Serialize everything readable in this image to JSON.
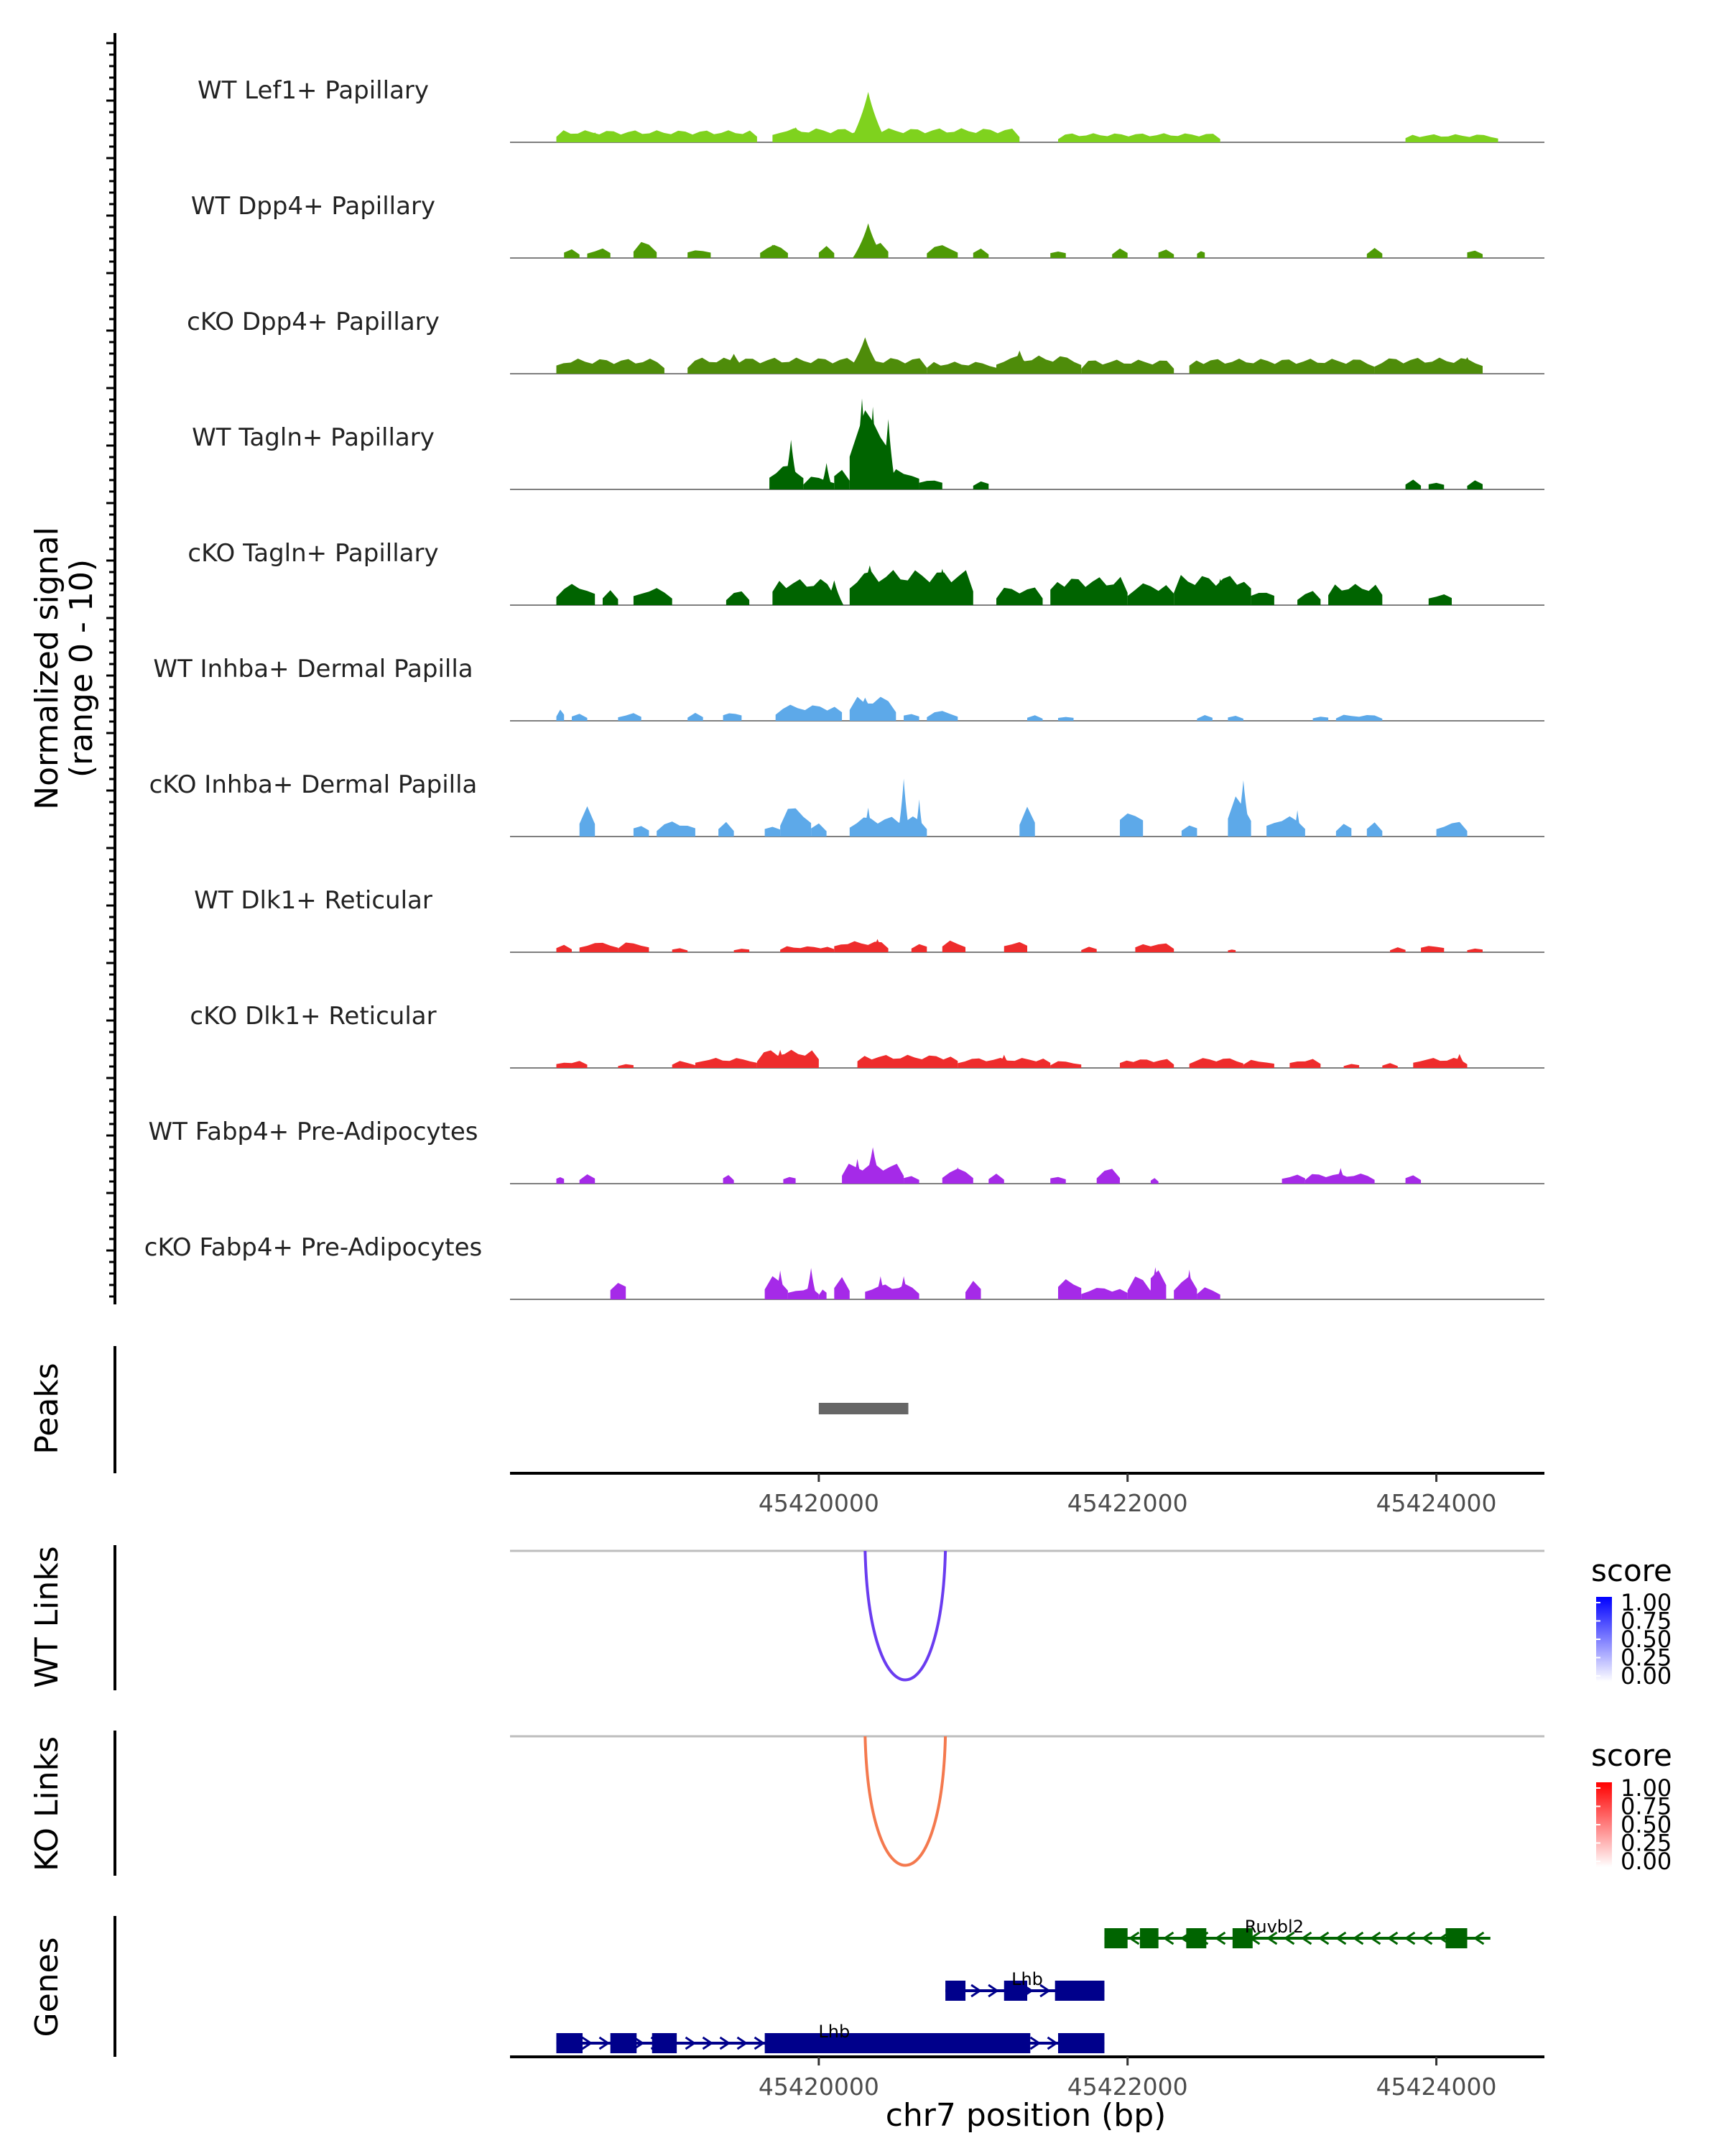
{
  "chart_data": {
    "type": "genome-browser",
    "chromosome": "chr7",
    "xlabel": "chr7 position (bp)",
    "xlim": [
      45418000,
      45424700
    ],
    "x_ticks": [
      45420000,
      45422000,
      45424000
    ],
    "x_tick_labels": [
      "45420000",
      "45422000",
      "45424000"
    ],
    "coverage_ylabel": [
      "Normalized signal",
      "(range 0 - 10)"
    ],
    "coverage_ylim": [
      0,
      10
    ],
    "coverage_tracks": [
      {
        "name": "WT Lef1+ Papillary",
        "color": "#7FD21E",
        "segments": [
          [
            45418300,
            45419600,
            1.2
          ],
          [
            45419700,
            45421300,
            1.4
          ],
          [
            45421550,
            45422600,
            0.9
          ],
          [
            45423800,
            45424400,
            0.8
          ]
        ],
        "peaks": [
          [
            45419850,
            0.1,
            1.8
          ],
          [
            45420320,
            0.12,
            6.1
          ],
          [
            45418550,
            0.08,
            1.2
          ]
        ]
      },
      {
        "name": "WT Dpp4+ Papillary",
        "color": "#4E9A06",
        "segments": [
          [
            45418350,
            45418450,
            1.0
          ],
          [
            45418500,
            45418650,
            1.0
          ],
          [
            45418800,
            45418950,
            1.6
          ],
          [
            45419150,
            45419300,
            1.0
          ],
          [
            45419620,
            45419800,
            1.3
          ],
          [
            45420000,
            45420100,
            1.2
          ],
          [
            45420250,
            45420450,
            1.5
          ],
          [
            45420700,
            45420900,
            1.3
          ],
          [
            45421000,
            45421100,
            1.0
          ],
          [
            45421500,
            45421600,
            1.0
          ],
          [
            45421900,
            45422000,
            1.0
          ],
          [
            45422200,
            45422300,
            1.0
          ],
          [
            45422450,
            45422500,
            1.0
          ],
          [
            45423550,
            45423650,
            1.0
          ],
          [
            45424200,
            45424300,
            1.0
          ]
        ],
        "peaks": [
          [
            45420320,
            0.1,
            4.2
          ],
          [
            45419700,
            0.08,
            1.6
          ],
          [
            45420800,
            0.08,
            1.5
          ]
        ]
      },
      {
        "name": "cKO Dpp4+ Papillary",
        "color": "#4E8C0A",
        "segments": [
          [
            45418300,
            45419000,
            1.5
          ],
          [
            45419150,
            45420700,
            1.6
          ],
          [
            45420700,
            45421150,
            1.2
          ],
          [
            45421150,
            45421700,
            1.8
          ],
          [
            45421700,
            45422300,
            1.4
          ],
          [
            45422400,
            45423600,
            1.5
          ],
          [
            45423600,
            45424300,
            1.6
          ]
        ],
        "peaks": [
          [
            45420300,
            0.12,
            4.4
          ],
          [
            45419450,
            0.1,
            2.4
          ],
          [
            45421300,
            0.08,
            2.8
          ],
          [
            45424200,
            0.08,
            2.0
          ]
        ]
      },
      {
        "name": "WT Tagln+ Papillary",
        "color": "#006400",
        "segments": [
          [
            45419680,
            45419900,
            2.5
          ],
          [
            45419900,
            45420100,
            1.3
          ],
          [
            45420100,
            45420200,
            2.4
          ],
          [
            45420200,
            45420450,
            8.0
          ],
          [
            45420450,
            45420650,
            2.0
          ],
          [
            45420650,
            45420800,
            1.2
          ],
          [
            45421000,
            45421100,
            1.0
          ],
          [
            45423800,
            45423900,
            1.0
          ],
          [
            45423950,
            45424050,
            1.0
          ],
          [
            45424200,
            45424300,
            1.0
          ]
        ],
        "peaks": [
          [
            45419820,
            0.05,
            6.0
          ],
          [
            45420280,
            0.06,
            11.0
          ],
          [
            45420350,
            0.05,
            10.0
          ],
          [
            45420450,
            0.05,
            8.5
          ],
          [
            45420050,
            0.04,
            3.2
          ]
        ]
      },
      {
        "name": "cKO Tagln+ Papillary",
        "color": "#006400",
        "segments": [
          [
            45418300,
            45418550,
            2.1
          ],
          [
            45418600,
            45418700,
            1.5
          ],
          [
            45418800,
            45419050,
            1.7
          ],
          [
            45419400,
            45419550,
            1.4
          ],
          [
            45419700,
            45420100,
            2.6
          ],
          [
            45420200,
            45421000,
            3.5
          ],
          [
            45421150,
            45421450,
            1.8
          ],
          [
            45421500,
            45422000,
            2.8
          ],
          [
            45422000,
            45422300,
            2.2
          ],
          [
            45422300,
            45422800,
            3.0
          ],
          [
            45422800,
            45422950,
            1.7
          ],
          [
            45423100,
            45423250,
            1.4
          ],
          [
            45423300,
            45423650,
            2.1
          ],
          [
            45423950,
            45424100,
            1.3
          ]
        ],
        "peaks": [
          [
            45420330,
            0.1,
            4.8
          ],
          [
            45420800,
            0.08,
            4.4
          ],
          [
            45420100,
            0.06,
            3.0
          ],
          [
            45422600,
            0.06,
            3.2
          ]
        ]
      },
      {
        "name": "WT Inhba+ Dermal Papilla",
        "color": "#5DA9E9",
        "segments": [
          [
            45418300,
            45418350,
            1.2
          ],
          [
            45418400,
            45418500,
            0.8
          ],
          [
            45418700,
            45418850,
            0.8
          ],
          [
            45419150,
            45419250,
            0.8
          ],
          [
            45419380,
            45419500,
            1.0
          ],
          [
            45419720,
            45420150,
            1.6
          ],
          [
            45420200,
            45420500,
            2.4
          ],
          [
            45420550,
            45420650,
            1.0
          ],
          [
            45420700,
            45420900,
            1.0
          ],
          [
            45421350,
            45421450,
            0.6
          ],
          [
            45421550,
            45421650,
            0.6
          ],
          [
            45422450,
            45422550,
            0.6
          ],
          [
            45422650,
            45422750,
            0.6
          ],
          [
            45423200,
            45423300,
            0.6
          ],
          [
            45423350,
            45423650,
            0.6
          ]
        ],
        "peaks": [
          [
            45420300,
            0.1,
            2.8
          ]
        ]
      },
      {
        "name": "cKO Inhba+ Dermal Papilla",
        "color": "#5DA9E9",
        "segments": [
          [
            45418450,
            45418550,
            3.0
          ],
          [
            45418800,
            45418900,
            1.5
          ],
          [
            45418950,
            45419200,
            1.5
          ],
          [
            45419350,
            45419450,
            1.5
          ],
          [
            45419650,
            45419750,
            1.5
          ],
          [
            45419750,
            45419950,
            3.0
          ],
          [
            45419950,
            45420050,
            1.5
          ],
          [
            45420200,
            45420700,
            2.0
          ],
          [
            45421300,
            45421400,
            3.0
          ],
          [
            45421950,
            45422100,
            3.0
          ],
          [
            45422350,
            45422450,
            1.5
          ],
          [
            45422650,
            45422800,
            4.0
          ],
          [
            45422900,
            45423150,
            2.0
          ],
          [
            45423350,
            45423450,
            1.5
          ],
          [
            45423550,
            45423650,
            1.5
          ],
          [
            45424000,
            45424200,
            1.5
          ]
        ],
        "peaks": [
          [
            45420550,
            0.04,
            7.0
          ],
          [
            45420650,
            0.03,
            4.5
          ],
          [
            45420320,
            0.04,
            3.5
          ],
          [
            45422750,
            0.05,
            6.8
          ],
          [
            45423100,
            0.03,
            3.2
          ]
        ]
      },
      {
        "name": "WT Dlk1+ Reticular",
        "color": "#EE2C2C",
        "segments": [
          [
            45418300,
            45418400,
            0.8
          ],
          [
            45418450,
            45418700,
            1.0
          ],
          [
            45418700,
            45418900,
            1.0
          ],
          [
            45419050,
            45419150,
            0.5
          ],
          [
            45419450,
            45419550,
            0.5
          ],
          [
            45419750,
            45420100,
            0.6
          ],
          [
            45420100,
            45420450,
            1.1
          ],
          [
            45420600,
            45420700,
            1.0
          ],
          [
            45420800,
            45420950,
            1.2
          ],
          [
            45421200,
            45421350,
            1.2
          ],
          [
            45421700,
            45421800,
            0.6
          ],
          [
            45422050,
            45422300,
            0.9
          ],
          [
            45422650,
            45422700,
            0.4
          ],
          [
            45423700,
            45423800,
            0.5
          ],
          [
            45423900,
            45424050,
            0.8
          ],
          [
            45424200,
            45424300,
            0.5
          ]
        ],
        "peaks": [
          [
            45420380,
            0.05,
            1.6
          ]
        ]
      },
      {
        "name": "cKO Dlk1+ Reticular",
        "color": "#EE2C2C",
        "segments": [
          [
            45418300,
            45418500,
            0.7
          ],
          [
            45418700,
            45418800,
            0.5
          ],
          [
            45419050,
            45419200,
            0.7
          ],
          [
            45419200,
            45419600,
            1.0
          ],
          [
            45419600,
            45420000,
            1.8
          ],
          [
            45420250,
            45420900,
            1.3
          ],
          [
            45420900,
            45421500,
            1.0
          ],
          [
            45421500,
            45421700,
            0.7
          ],
          [
            45421950,
            45422300,
            0.9
          ],
          [
            45422400,
            45422750,
            1.0
          ],
          [
            45422750,
            45422950,
            0.8
          ],
          [
            45423050,
            45423250,
            0.9
          ],
          [
            45423400,
            45423500,
            0.5
          ],
          [
            45423650,
            45423750,
            0.5
          ],
          [
            45423850,
            45424200,
            1.0
          ]
        ],
        "peaks": [
          [
            45419750,
            0.05,
            2.2
          ],
          [
            45421200,
            0.05,
            1.6
          ],
          [
            45424150,
            0.05,
            1.7
          ]
        ]
      },
      {
        "name": "WT Fabp4+ Pre-Adipocytes",
        "color": "#A52AE8",
        "segments": [
          [
            45418300,
            45418350,
            1.0
          ],
          [
            45418450,
            45418550,
            1.0
          ],
          [
            45419380,
            45419450,
            1.0
          ],
          [
            45419770,
            45419850,
            1.0
          ],
          [
            45420150,
            45420550,
            2.0
          ],
          [
            45420550,
            45420650,
            1.0
          ],
          [
            45420800,
            45421000,
            1.5
          ],
          [
            45421100,
            45421200,
            1.0
          ],
          [
            45421500,
            45421600,
            1.0
          ],
          [
            45421800,
            45421950,
            1.5
          ],
          [
            45422150,
            45422200,
            0.6
          ],
          [
            45423000,
            45423150,
            1.0
          ],
          [
            45423150,
            45423600,
            1.0
          ],
          [
            45423800,
            45423900,
            1.0
          ]
        ],
        "peaks": [
          [
            45420350,
            0.06,
            4.4
          ],
          [
            45420250,
            0.04,
            3.0
          ],
          [
            45420900,
            0.04,
            2.0
          ],
          [
            45423380,
            0.04,
            1.9
          ]
        ]
      },
      {
        "name": "cKO Fabp4+ Pre-Adipocytes",
        "color": "#A52AE8",
        "segments": [
          [
            45418650,
            45418750,
            2.3
          ],
          [
            45419650,
            45419800,
            2.3
          ],
          [
            45419800,
            45420000,
            1.2
          ],
          [
            45420000,
            45420050,
            1.2
          ],
          [
            45420100,
            45420200,
            2.3
          ],
          [
            45420300,
            45420650,
            1.5
          ],
          [
            45420950,
            45421050,
            2.0
          ],
          [
            45421550,
            45421700,
            2.3
          ],
          [
            45421700,
            45422000,
            1.2
          ],
          [
            45422000,
            45422150,
            2.3
          ],
          [
            45422150,
            45422250,
            3.8
          ],
          [
            45422300,
            45422450,
            2.3
          ],
          [
            45422450,
            45422600,
            1.2
          ]
        ],
        "peaks": [
          [
            45419750,
            0.04,
            3.5
          ],
          [
            45419950,
            0.04,
            3.8
          ],
          [
            45420400,
            0.04,
            2.8
          ],
          [
            45420550,
            0.04,
            2.8
          ],
          [
            45422180,
            0.05,
            3.9
          ],
          [
            45422400,
            0.04,
            3.6
          ]
        ]
      }
    ],
    "peaks_track": {
      "name": "Peaks",
      "color": "#666666",
      "regions": [
        [
          45420000,
          45420580
        ]
      ]
    },
    "link_tracks": [
      {
        "name": "WT Links",
        "color": "#6A3CF0",
        "links": [
          {
            "start": 45420300,
            "end": 45420820,
            "score": 0.62
          }
        ],
        "legend": {
          "title": "score",
          "ticks": [
            "1.00",
            "0.75",
            "0.50",
            "0.25",
            "0.00"
          ],
          "low": "#FFFFFF",
          "high": "#0000FF"
        }
      },
      {
        "name": "KO Links",
        "color": "#F4794E",
        "links": [
          {
            "start": 45420300,
            "end": 45420820,
            "score": 0.62
          }
        ],
        "legend": {
          "title": "score",
          "ticks": [
            "1.00",
            "0.75",
            "0.50",
            "0.25",
            "0.00"
          ],
          "low": "#FFFFFF",
          "high": "#FF0000"
        }
      }
    ],
    "genes": [
      {
        "name": "Ruvbl2",
        "strand": "-",
        "color": "#006400",
        "row": 0,
        "start": 45421850,
        "end": 45424350,
        "exons": [
          [
            45421850,
            45422000
          ],
          [
            45422080,
            45422200
          ],
          [
            45422380,
            45422510
          ],
          [
            45422680,
            45422810
          ],
          [
            45424060,
            45424200
          ]
        ]
      },
      {
        "name": "Lhb",
        "strand": "+",
        "color": "#00008B",
        "row": 1,
        "start": 45420820,
        "end": 45421850,
        "exons": [
          [
            45420820,
            45420950
          ],
          [
            45421200,
            45421350
          ],
          [
            45421530,
            45421850
          ]
        ]
      },
      {
        "name": "Lhb",
        "strand": "+",
        "color": "#00008B",
        "row": 2,
        "start": 45418300,
        "end": 45421850,
        "exons": [
          [
            45418300,
            45418470
          ],
          [
            45418650,
            45418820
          ],
          [
            45418920,
            45419080
          ],
          [
            45419650,
            45421370
          ],
          [
            45421550,
            45421850
          ]
        ]
      }
    ],
    "gene_axis_ticks": [
      "45420000",
      "45422000",
      "45424000"
    ]
  }
}
